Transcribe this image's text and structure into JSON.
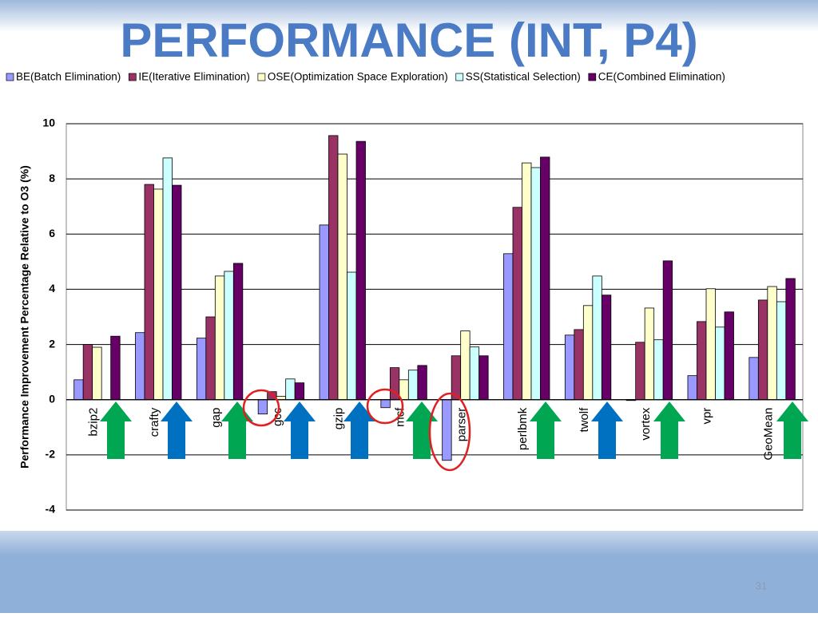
{
  "slide": {
    "title": "PERFORMANCE (INT, P4)",
    "page_number": "31"
  },
  "chart_data": {
    "type": "bar",
    "y_label": "Performance Improvement Percentage Relative to O3 (%)",
    "categories": [
      "bzip2",
      "crafty",
      "gap",
      "gcc",
      "gzip",
      "mcf",
      "parser",
      "perlbmk",
      "twolf",
      "vortex",
      "vpr",
      "GeoMean"
    ],
    "series": [
      {
        "name": "BE(Batch Elimination)",
        "color": "#9999ff",
        "values": [
          0.72,
          2.43,
          2.23,
          -0.52,
          6.33,
          -0.29,
          -2.2,
          5.29,
          2.34,
          -0.03,
          0.87,
          1.53
        ]
      },
      {
        "name": "IE(Iterative Elimination)",
        "color": "#993366",
        "values": [
          2.0,
          7.8,
          3.0,
          0.29,
          9.57,
          1.16,
          1.59,
          6.97,
          2.54,
          2.08,
          2.83,
          3.61
        ]
      },
      {
        "name": "OSE(Optimization Space Exploration)",
        "color": "#ffffcc",
        "values": [
          1.9,
          7.63,
          4.48,
          0.12,
          8.9,
          0.72,
          2.49,
          8.58,
          3.41,
          3.32,
          4.02,
          4.1
        ]
      },
      {
        "name": "SS(Statistical Selection)",
        "color": "#ccffff",
        "values": [
          0,
          8.76,
          4.65,
          0.75,
          4.62,
          1.07,
          1.91,
          8.41,
          4.48,
          2.17,
          2.63,
          3.55
        ]
      },
      {
        "name": "CE(Combined Elimination)",
        "color": "#660066",
        "values": [
          2.3,
          7.77,
          4.94,
          0.61,
          9.36,
          1.24,
          1.59,
          8.79,
          3.79,
          5.03,
          3.18,
          4.39
        ]
      }
    ],
    "ylim": [
      -4,
      10
    ],
    "yticks": [
      -4,
      -2,
      0,
      2,
      4,
      6,
      8,
      10
    ],
    "grid": true,
    "legend": "top"
  }
}
